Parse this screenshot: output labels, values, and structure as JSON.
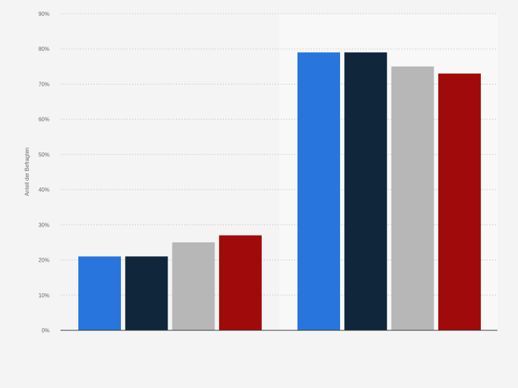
{
  "chart_data": {
    "type": "bar",
    "title": "",
    "xlabel": "",
    "ylabel": "Anteil der Befragten",
    "ylim": [
      0,
      90
    ],
    "y_ticks": [
      0,
      10,
      20,
      30,
      40,
      50,
      60,
      70,
      80,
      90
    ],
    "y_tick_suffix": "%",
    "grid": true,
    "legend": "none",
    "categories": [
      "",
      ""
    ],
    "series": [
      {
        "color": "#2876dd",
        "values": [
          21,
          79
        ]
      },
      {
        "color": "#10263b",
        "values": [
          21,
          79
        ]
      },
      {
        "color": "#b7b7b7",
        "values": [
          25,
          75
        ]
      },
      {
        "color": "#a10a0a",
        "values": [
          27,
          73
        ]
      }
    ]
  },
  "colors": {
    "background": "#f4f4f4",
    "highlight_band": "#f8f8f8",
    "gridline": "#cfcfcf",
    "axis": "#333333",
    "tick_text": "#666666"
  }
}
